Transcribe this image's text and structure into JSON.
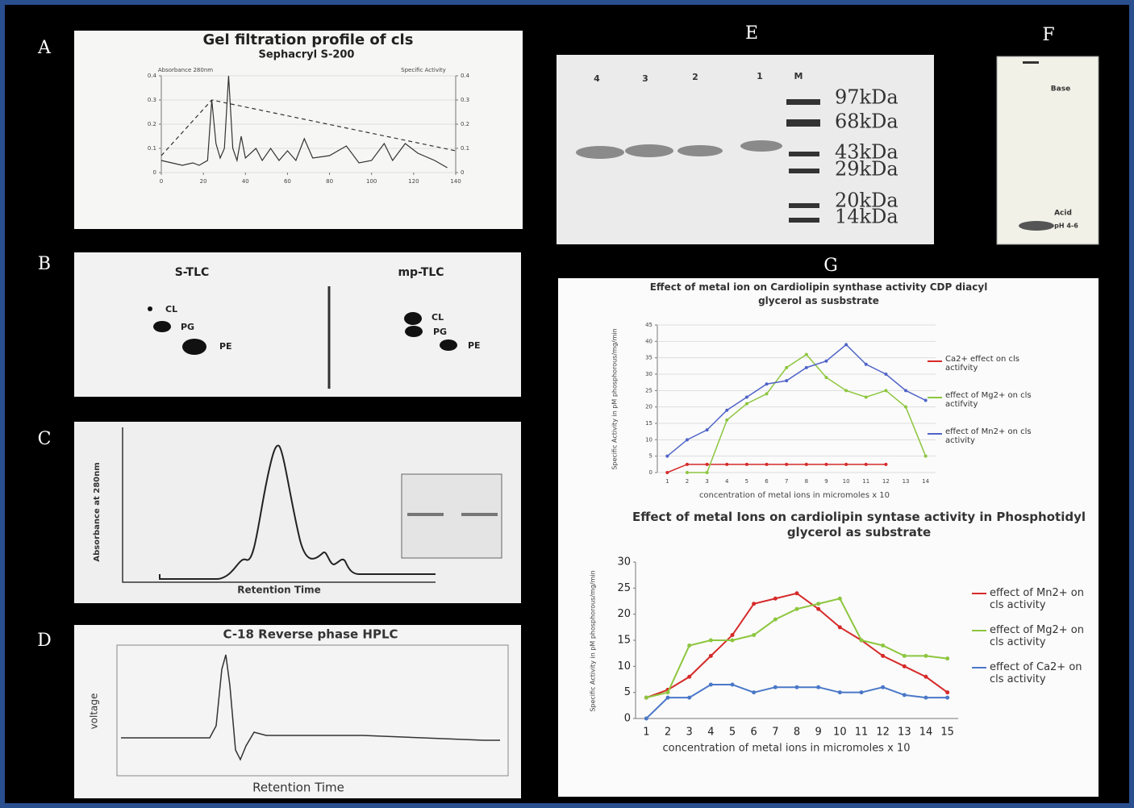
{
  "panel_labels": [
    "A",
    "B",
    "C",
    "D",
    "E",
    "F",
    "G"
  ],
  "tlc": {
    "left_title": "S-TLC",
    "right_title": "mp-TLC",
    "left_spots": [
      "CL",
      "PG",
      "PE"
    ],
    "right_spots": [
      "CL",
      "PG",
      "PE"
    ]
  },
  "hplc": {
    "ylabel": "Absorbance at 280nm",
    "xlabel": "Retention Time"
  },
  "rp_hplc": {
    "title": "C-18 Reverse phase HPLC",
    "ylabel": "voltage",
    "xlabel": "Retention Time"
  },
  "sds_page": {
    "lanes": [
      "4",
      "3",
      "2",
      "1",
      "M"
    ],
    "markers": [
      "97kDa",
      "68kDa",
      "43kDa",
      "29kDa",
      "20kDa",
      "14kDa"
    ]
  },
  "tlc_ph": {
    "labels": [
      "Base",
      "Acid",
      "pH 4-6"
    ]
  },
  "chart_data": [
    {
      "type": "line",
      "title": "Gel filtration profile of cls",
      "subtitle": "Sephacryl S-200",
      "ylabel": "Absorbance 280nm",
      "y2label": "Specific Activity",
      "xlim": [
        0,
        140
      ],
      "xticks": [
        0,
        20,
        40,
        60,
        80,
        100,
        120,
        140
      ],
      "ylim": [
        0,
        0.4
      ],
      "yticks": [
        0,
        0.1,
        0.2,
        0.3,
        0.4
      ],
      "y2lim": [
        0,
        0.4
      ],
      "y2ticks": [
        0,
        0.1,
        0.2,
        0.3,
        0.4
      ],
      "grid": true,
      "series": [
        {
          "color": "#333333",
          "style": "solid",
          "x": [
            0,
            5,
            10,
            15,
            18,
            22,
            24,
            26,
            28,
            30,
            32,
            34,
            36,
            38,
            40,
            45,
            48,
            52,
            56,
            60,
            64,
            68,
            72,
            80,
            88,
            94,
            100,
            106,
            110,
            116,
            122,
            130,
            136
          ],
          "values": [
            0.05,
            0.04,
            0.03,
            0.04,
            0.03,
            0.05,
            0.3,
            0.12,
            0.06,
            0.1,
            0.4,
            0.1,
            0.05,
            0.15,
            0.06,
            0.1,
            0.05,
            0.1,
            0.05,
            0.09,
            0.05,
            0.14,
            0.06,
            0.07,
            0.11,
            0.04,
            0.05,
            0.12,
            0.05,
            0.12,
            0.08,
            0.05,
            0.02
          ]
        },
        {
          "color": "#333333",
          "style": "dashed",
          "axis": "y2",
          "x": [
            0,
            24,
            140
          ],
          "values": [
            0.07,
            0.3,
            0.09
          ]
        }
      ]
    },
    {
      "type": "line",
      "title": "Effect of metal ion on Cardiolipin synthase activity CDP diacyl glycerol as susbstrate",
      "xlabel": "concentration of metal ions in micromoles x 10",
      "ylabel": "Specific Activity in pM phosphorous/mg/min",
      "categories": [
        "1",
        "2",
        "3",
        "4",
        "5",
        "6",
        "7",
        "8",
        "9",
        "10",
        "11",
        "12",
        "13",
        "14"
      ],
      "ylim": [
        0,
        45
      ],
      "yticks": [
        0,
        5,
        10,
        15,
        20,
        25,
        30,
        35,
        40,
        45
      ],
      "grid": true,
      "legend": "right",
      "series": [
        {
          "name": "Ca2+ effect on cls actifvity",
          "color": "#d62a2a",
          "values": [
            0,
            2.5,
            2.5,
            2.5,
            2.5,
            2.5,
            2.5,
            2.5,
            2.5,
            2.5,
            2.5,
            2.5,
            null,
            null
          ]
        },
        {
          "name": "effect of Mg2+ on cls actifvity",
          "color": "#8dc63f",
          "values": [
            null,
            0,
            0,
            16,
            21,
            24,
            32,
            36,
            29,
            25,
            23,
            25,
            20,
            5
          ]
        },
        {
          "name": "effect of Mn2+ on cls activity",
          "color": "#5064c8",
          "values": [
            5,
            10,
            13,
            19,
            23,
            27,
            28,
            32,
            34,
            39,
            33,
            30,
            25,
            22
          ]
        }
      ]
    },
    {
      "type": "line",
      "title": "Effect of  metal Ions on cardiolipin syntase activity in Phosphotidyl glycerol as substrate",
      "xlabel": "concentration of metal ions in micromoles x 10",
      "ylabel": "Specific Activity in pM phosphorous/mg/min",
      "categories": [
        "1",
        "2",
        "3",
        "4",
        "5",
        "6",
        "7",
        "8",
        "9",
        "10",
        "11",
        "12",
        "13",
        "14",
        "15"
      ],
      "ylim": [
        0,
        30
      ],
      "yticks": [
        0,
        5,
        10,
        15,
        20,
        25,
        30
      ],
      "grid": false,
      "legend": "right",
      "series": [
        {
          "name": "effect of Mn2+ on cls activity",
          "color": "#d62a2a",
          "values": [
            4,
            5.5,
            8,
            12,
            16,
            22,
            23,
            24,
            21,
            17.5,
            15,
            12,
            10,
            8,
            5
          ]
        },
        {
          "name": "effect of Mg2+ on cls activity",
          "color": "#8dc63f",
          "values": [
            4,
            5,
            14,
            15,
            15,
            16,
            19,
            21,
            22,
            23,
            15,
            14,
            12,
            12,
            11.5
          ]
        },
        {
          "name": "effect of Ca2+ on cls activity",
          "color": "#4a78c8",
          "values": [
            0,
            4,
            4,
            6.5,
            6.5,
            5,
            6,
            6,
            6,
            5,
            5,
            6,
            4.5,
            4,
            4
          ]
        }
      ]
    }
  ]
}
